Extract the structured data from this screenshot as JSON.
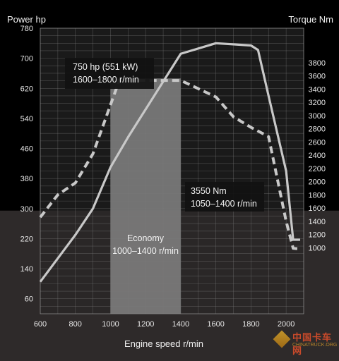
{
  "chart_data": {
    "type": "line",
    "xlabel": "Engine speed r/min",
    "ylabel_left": "Power hp",
    "ylabel_right": "Torque Nm",
    "x_ticks": [
      600,
      800,
      1000,
      1200,
      1400,
      1600,
      1800,
      2000
    ],
    "y_left_ticks": [
      60,
      140,
      220,
      300,
      380,
      460,
      540,
      620,
      700,
      780
    ],
    "y_right_ticks": [
      1000,
      1200,
      1400,
      1600,
      1800,
      2000,
      2200,
      2400,
      2600,
      2800,
      3000,
      3200,
      3400,
      3600,
      3800
    ],
    "xlim": [
      600,
      2100
    ],
    "ylim_left": [
      20,
      780
    ],
    "ylim_right": [
      0,
      4320
    ],
    "grid": true,
    "series": [
      {
        "axis": "left",
        "style": "solid",
        "color": "#c8c8c8",
        "x": [
          600,
          800,
          900,
          1000,
          1100,
          1400,
          1600,
          1800,
          1840,
          1900,
          2000,
          2040,
          2080
        ],
        "y": [
          105,
          230,
          300,
          410,
          490,
          712,
          740,
          734,
          722,
          600,
          400,
          217,
          217
        ]
      },
      {
        "axis": "right",
        "style": "dashed",
        "color": "#c8c8c8",
        "x": [
          600,
          700,
          800,
          900,
          1050,
          1400,
          1600,
          1700,
          1800,
          1900,
          2000,
          2040,
          2080
        ],
        "y": [
          1460,
          1800,
          1980,
          2420,
          3530,
          3530,
          3280,
          2980,
          2820,
          2680,
          1400,
          990,
          980
        ]
      }
    ],
    "annotations": [
      {
        "lines": [
          "750 hp (551 kW)",
          "1600–1800 r/min"
        ]
      },
      {
        "lines": [
          "3550 Nm",
          "1050–1400 r/min"
        ]
      },
      {
        "lines": [
          "Economy",
          "1000–1400 r/min"
        ]
      }
    ],
    "economy_band": {
      "x_from": 1000,
      "x_to": 1400,
      "y_right_top": 3560
    }
  },
  "watermark": {
    "text": "中国卡车网",
    "subtext": "CHINATRUCK.ORG"
  },
  "colors": {
    "background": "#000000",
    "plot_background": "#1a1a1a",
    "lower_band": "#2e2a2a",
    "grid": "#7a7a7a",
    "economy_band": "#7d7d7d",
    "curve": "#c8c8c8"
  }
}
